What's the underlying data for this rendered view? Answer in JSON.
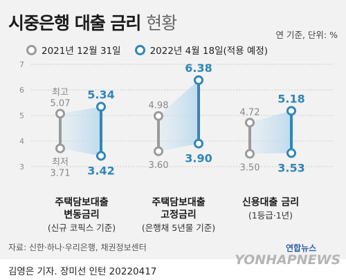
{
  "title": {
    "main": "시중은행 대출 금리",
    "light": "현황"
  },
  "unit_note": "연 기준, 단위: %",
  "source": "자료: 신한·하나·우리은행, 채권정보센터",
  "credit": "김영은 기자. 장미선 인턴  20220417",
  "logo": {
    "ko": "연합뉴스",
    "en": "YONHAPNEWS"
  },
  "chart_data": {
    "type": "dumbbell",
    "ylim": [
      2.5,
      7
    ],
    "yticks": [
      3,
      4,
      5,
      6,
      7
    ],
    "grid": true,
    "legend_placement": "top",
    "colors": {
      "2021": "#9a9a9a",
      "2022": "#2f86b8"
    },
    "legend": [
      "2021년 12월 31일",
      "2022년 4월 18일(적용 예정)"
    ],
    "series_labels": {
      "max": "최고",
      "min": "최저"
    },
    "categories": [
      {
        "label1": "주택담보대출",
        "label2": "변동금리",
        "label3": "(신규 코픽스 기준)",
        "y2021": {
          "max": 5.07,
          "min": 3.71,
          "max_label": "5.07",
          "min_label": "3.71"
        },
        "y2022": {
          "max": 5.34,
          "min": 3.42,
          "max_label": "5.34",
          "min_label": "3.42"
        }
      },
      {
        "label1": "주택담보대출",
        "label2": "고정금리",
        "label3": "(은행채 5년물 기준)",
        "y2021": {
          "max": 4.98,
          "min": 3.6,
          "max_label": "4.98",
          "min_label": "3.60"
        },
        "y2022": {
          "max": 6.38,
          "min": 3.9,
          "max_label": "6.38",
          "min_label": "3.90"
        }
      },
      {
        "label1": "신용대출 금리",
        "label2": "",
        "label3": "(1등급·1년)",
        "y2021": {
          "max": 4.72,
          "min": 3.5,
          "max_label": "4.72",
          "min_label": "3.50"
        },
        "y2022": {
          "max": 5.18,
          "min": 3.53,
          "max_label": "5.18",
          "min_label": "3.53"
        }
      }
    ]
  }
}
